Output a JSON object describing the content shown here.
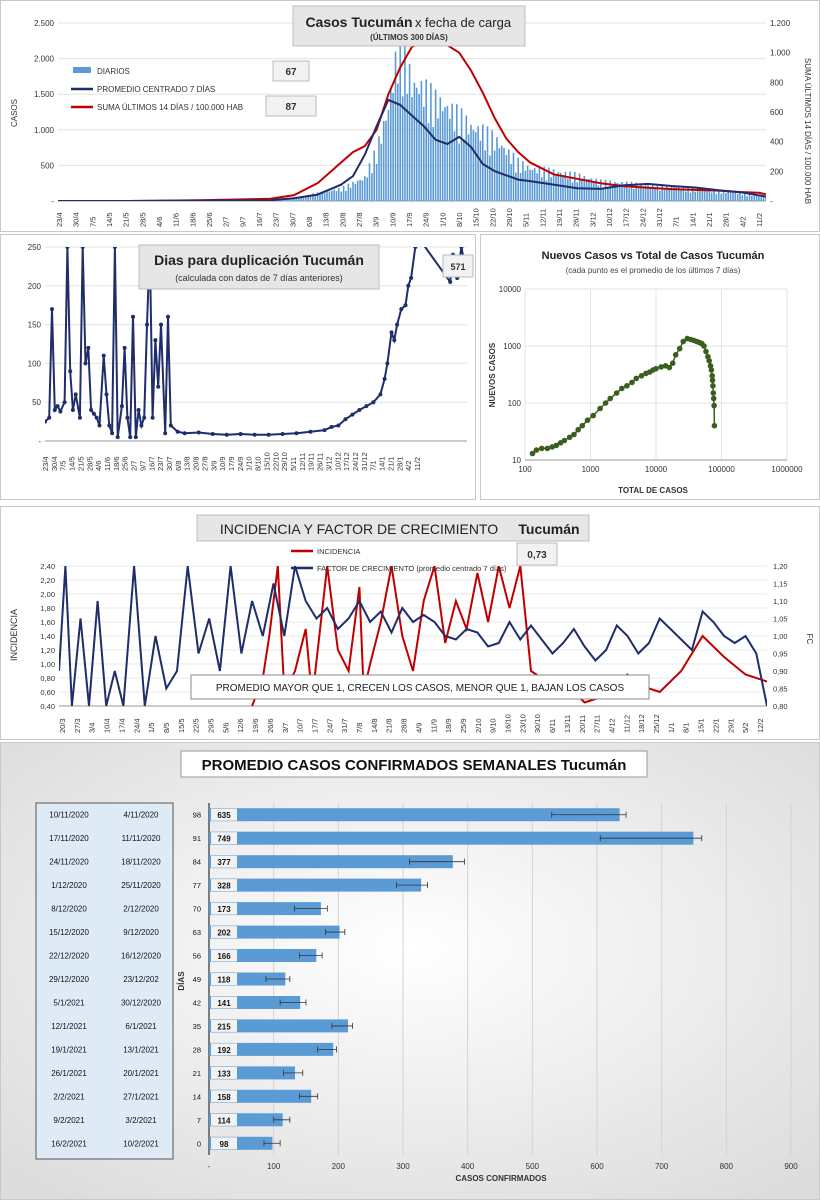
{
  "panel1": {
    "title_a": "Casos Tucumán",
    "title_b": "x fecha de carga",
    "subtitle": "(ÚLTIMOS 300 DÍAS)",
    "ylabel_left": "CASOS",
    "ylabel_right": "SUMA ÚLTIMOS 14 DÍAS / 100.000 HAB",
    "legend": [
      "DIARIOS",
      "PROMEDIO CENTRADO 7 DÍAS",
      "SUMA ÚLTIMOS 14 DÍAS / 100.000 HAB"
    ],
    "value_box_1": "67",
    "value_box_2": "87",
    "left_ticks": [
      "-",
      "500",
      "1.000",
      "1.500",
      "2.000",
      "2.500"
    ],
    "right_ticks": [
      "-",
      "200",
      "400",
      "600",
      "800",
      "1.000",
      "1.200"
    ],
    "x_ticks": [
      "23/4",
      "30/4",
      "7/5",
      "14/5",
      "21/5",
      "28/5",
      "4/6",
      "11/6",
      "18/6",
      "25/6",
      "2/7",
      "9/7",
      "16/7",
      "23/7",
      "30/7",
      "6/8",
      "13/8",
      "20/8",
      "27/8",
      "3/9",
      "10/9",
      "17/9",
      "24/9",
      "1/10",
      "8/10",
      "15/10",
      "22/10",
      "29/10",
      "5/11",
      "12/11",
      "19/11",
      "26/11",
      "3/12",
      "10/12",
      "17/12",
      "24/12",
      "31/12",
      "7/1",
      "14/1",
      "21/1",
      "28/1",
      "4/2",
      "11/2"
    ]
  },
  "panel2": {
    "title": "Dias para duplicación Tucumán",
    "subtitle": "(calculada con datos de 7 días anteriores)",
    "value_box": "571",
    "y_ticks": [
      "-",
      "50",
      "100",
      "150",
      "200",
      "250"
    ],
    "x_ticks": [
      "23/4",
      "30/4",
      "7/5",
      "14/5",
      "21/5",
      "28/5",
      "4/6",
      "11/6",
      "18/6",
      "25/6",
      "2/7",
      "9/7",
      "16/7",
      "23/7",
      "30/7",
      "6/8",
      "13/8",
      "20/8",
      "27/8",
      "3/9",
      "10/9",
      "17/9",
      "24/9",
      "1/10",
      "8/10",
      "15/10",
      "22/10",
      "29/10",
      "5/11",
      "12/11",
      "19/11",
      "26/11",
      "3/12",
      "10/12",
      "17/12",
      "24/12",
      "31/12",
      "7/1",
      "14/1",
      "21/1",
      "28/1",
      "4/2",
      "11/2"
    ]
  },
  "panel3": {
    "title": "Nuevos Casos vs Total de Casos Tucumán",
    "subtitle": "(cada punto es el promedio de los últimos 7 días)",
    "xlabel": "TOTAL DE CASOS",
    "ylabel": "NUEVOS CASOS",
    "x_ticks": [
      "100",
      "1000",
      "10000",
      "100000",
      "1000000"
    ],
    "y_ticks": [
      "10",
      "100",
      "1000",
      "10000"
    ]
  },
  "panel4": {
    "title_a": "INCIDENCIA Y FACTOR DE CRECIMIENTO",
    "title_b": "Tucumán",
    "legend": [
      "INCIDENCIA",
      "FACTOR DE CRECIMIENTO (promedio centrado 7 días)"
    ],
    "value_box": "0,73",
    "ylabel_left": "INCIDENCIA",
    "ylabel_right": "FC",
    "note": "PROMEDIO MAYOR QUE 1, CRECEN LOS CASOS, MENOR QUE 1, BAJAN LOS CASOS",
    "left_ticks": [
      "0,40",
      "0,60",
      "0,80",
      "1,00",
      "1,20",
      "1,40",
      "1,60",
      "1,80",
      "2,00",
      "2,20",
      "2,40"
    ],
    "right_ticks": [
      "0,80",
      "0,85",
      "0,90",
      "0,95",
      "1,00",
      "1,05",
      "1,10",
      "1,15",
      "1,20"
    ],
    "x_ticks": [
      "20/3",
      "27/3",
      "3/4",
      "10/4",
      "17/4",
      "24/4",
      "1/5",
      "8/5",
      "15/5",
      "22/5",
      "29/5",
      "5/6",
      "12/6",
      "19/6",
      "26/6",
      "3/7",
      "10/7",
      "17/7",
      "24/7",
      "31/7",
      "7/8",
      "14/8",
      "21/8",
      "28/8",
      "4/9",
      "11/9",
      "18/9",
      "25/9",
      "2/10",
      "9/10",
      "16/10",
      "23/10",
      "30/10",
      "6/11",
      "13/11",
      "20/11",
      "27/11",
      "4/12",
      "11/12",
      "18/12",
      "25/12",
      "1/1",
      "8/1",
      "15/1",
      "22/1",
      "29/1",
      "5/2",
      "12/2"
    ]
  },
  "panel5": {
    "title": "PROMEDIO CASOS CONFIRMADOS SEMANALES Tucumán",
    "xlabel": "CASOS CONFIRMADOS",
    "ylabel": "DÍAS",
    "x_ticks": [
      "-",
      "100",
      "200",
      "300",
      "400",
      "500",
      "600",
      "700",
      "800",
      "900"
    ]
  },
  "chart_data": [
    {
      "type": "bar",
      "id": "casos-diarios",
      "title": "Casos Tucumán x fecha de carga",
      "ylabel": "CASOS",
      "ylim": [
        0,
        2500
      ],
      "y2lim": [
        0,
        1200
      ],
      "series": [
        {
          "name": "DIARIOS",
          "axis": "left",
          "style": "bar",
          "x": [
            0,
            30,
            60,
            100,
            120,
            130,
            135,
            140,
            145,
            150,
            155,
            160,
            165,
            170,
            175,
            180,
            185,
            190,
            195,
            200,
            210,
            220,
            230,
            240,
            250,
            260,
            270,
            280,
            290,
            300
          ],
          "values": [
            2,
            5,
            10,
            40,
            160,
            300,
            650,
            1200,
            2150,
            1500,
            1450,
            1300,
            1200,
            1100,
            950,
            900,
            800,
            650,
            500,
            420,
            380,
            330,
            250,
            230,
            200,
            190,
            150,
            130,
            100,
            60
          ]
        },
        {
          "name": "PROMEDIO CENTRADO 7 DÍAS",
          "axis": "left",
          "style": "line",
          "x": [
            0,
            30,
            60,
            90,
            100,
            110,
            120,
            125,
            130,
            135,
            140,
            145,
            150,
            155,
            160,
            165,
            170,
            175,
            180,
            185,
            190,
            195,
            200,
            210,
            220,
            230,
            240,
            250,
            260,
            270,
            280,
            290,
            297,
            300
          ],
          "values": [
            0,
            0,
            5,
            10,
            40,
            90,
            230,
            350,
            650,
            1050,
            1420,
            1350,
            1200,
            1050,
            860,
            800,
            900,
            760,
            520,
            420,
            360,
            300,
            280,
            230,
            180,
            170,
            220,
            240,
            210,
            190,
            150,
            120,
            80,
            60
          ]
        },
        {
          "name": "SUMA ÚLTIMOS 14 DÍAS / 100.000 HAB",
          "axis": "right",
          "style": "line",
          "x": [
            0,
            30,
            60,
            90,
            100,
            110,
            120,
            125,
            130,
            135,
            140,
            145,
            150,
            155,
            160,
            165,
            170,
            175,
            180,
            185,
            190,
            195,
            200,
            210,
            220,
            230,
            240,
            250,
            260,
            270,
            280,
            290,
            297,
            300
          ],
          "values": [
            0,
            0,
            5,
            15,
            40,
            120,
            260,
            330,
            370,
            480,
            720,
            900,
            1040,
            1070,
            1060,
            1050,
            1000,
            880,
            730,
            560,
            420,
            330,
            260,
            180,
            150,
            120,
            100,
            90,
            80,
            75,
            70,
            60,
            55,
            45
          ]
        }
      ]
    },
    {
      "type": "line",
      "id": "dias-duplicacion",
      "title": "Dias para duplicación Tucumán",
      "ylim": [
        0,
        250
      ],
      "x": [
        0,
        3,
        5,
        7,
        9,
        11,
        14,
        16,
        18,
        20,
        22,
        25,
        27,
        29,
        31,
        33,
        35,
        37,
        39,
        42,
        44,
        46,
        48,
        50,
        52,
        55,
        57,
        59,
        61,
        63,
        65,
        67,
        69,
        71,
        73,
        75,
        77,
        79,
        81,
        83,
        86,
        88,
        90,
        95,
        100,
        110,
        120,
        130,
        140,
        150,
        160,
        170,
        180,
        190,
        200,
        205,
        210,
        215,
        220,
        225,
        230,
        235,
        240,
        243,
        245,
        248,
        250,
        252,
        255,
        258,
        260,
        262,
        265,
        268,
        270,
        290,
        292,
        295,
        298,
        300,
        302
      ],
      "values": [
        25,
        30,
        170,
        40,
        45,
        38,
        50,
        250,
        90,
        40,
        60,
        30,
        250,
        100,
        120,
        40,
        35,
        30,
        20,
        110,
        60,
        20,
        10,
        250,
        5,
        45,
        120,
        30,
        5,
        160,
        5,
        40,
        20,
        30,
        150,
        250,
        30,
        130,
        70,
        150,
        10,
        160,
        20,
        12,
        10,
        11,
        9,
        8,
        9,
        8,
        8,
        9,
        10,
        12,
        14,
        18,
        20,
        28,
        34,
        40,
        45,
        50,
        60,
        80,
        100,
        140,
        130,
        150,
        170,
        175,
        200,
        210,
        250,
        260,
        255,
        205,
        240,
        210,
        250,
        230,
        215
      ]
    },
    {
      "type": "scatter",
      "id": "nuevos-vs-total",
      "title": "Nuevos Casos vs Total de Casos Tucumán",
      "xlabel": "TOTAL DE CASOS",
      "ylabel": "NUEVOS CASOS",
      "xscale": "log",
      "yscale": "log",
      "xlim": [
        100,
        1000000
      ],
      "ylim": [
        10,
        10000
      ],
      "x": [
        130,
        150,
        180,
        220,
        260,
        300,
        350,
        400,
        480,
        560,
        650,
        750,
        900,
        1100,
        1400,
        1700,
        2000,
        2500,
        3000,
        3600,
        4300,
        5000,
        6000,
        7000,
        8000,
        9000,
        10000,
        12000,
        14000,
        16000,
        18000,
        20000,
        23000,
        26000,
        30000,
        34000,
        38000,
        42000,
        46000,
        50000,
        54000,
        58000,
        62000,
        65000,
        68000,
        70000,
        72000,
        73000,
        74000,
        75000,
        76000,
        77000,
        78000
      ],
      "y": [
        13,
        15,
        16,
        16,
        17,
        18,
        20,
        22,
        25,
        28,
        34,
        40,
        50,
        60,
        80,
        100,
        120,
        150,
        180,
        200,
        230,
        270,
        300,
        330,
        350,
        380,
        400,
        430,
        450,
        420,
        500,
        700,
        900,
        1200,
        1350,
        1300,
        1250,
        1200,
        1150,
        1100,
        1000,
        800,
        650,
        550,
        450,
        380,
        300,
        250,
        200,
        150,
        120,
        90,
        40
      ]
    },
    {
      "type": "line",
      "id": "incidencia-factor",
      "title": "INCIDENCIA Y FACTOR DE CRECIMIENTO Tucumán",
      "ylim": [
        0.4,
        2.4
      ],
      "y2lim": [
        0.8,
        1.2
      ],
      "series": [
        {
          "name": "INCIDENCIA",
          "axis": "left",
          "x": [
            90,
            95,
            98,
            102,
            105,
            110,
            115,
            118,
            125,
            130,
            135,
            140,
            142,
            145,
            150,
            155,
            160,
            165,
            170,
            175,
            180,
            185,
            190,
            195,
            200,
            205,
            210,
            215,
            220,
            225,
            230,
            235,
            240,
            245,
            250,
            255,
            260,
            265,
            270,
            280,
            290,
            300,
            310,
            320,
            330
          ],
          "values": [
            0.4,
            0.8,
            1.4,
            2.4,
            0.6,
            0.9,
            1.5,
            0.5,
            2.4,
            1.2,
            0.9,
            2.1,
            0.6,
            1.0,
            1.6,
            2.4,
            1.4,
            0.9,
            1.9,
            2.4,
            1.3,
            1.9,
            1.5,
            2.3,
            1.6,
            2.4,
            1.8,
            2.4,
            0.9,
            0.8,
            0.6,
            0.55,
            0.6,
            0.45,
            0.5,
            0.55,
            0.7,
            0.85,
            0.7,
            0.6,
            0.9,
            1.4,
            1.1,
            0.85,
            0.75
          ]
        },
        {
          "name": "FACTOR DE CRECIMIENTO (promedio centrado 7 días)",
          "axis": "right",
          "x": [
            0,
            3,
            6,
            10,
            14,
            18,
            22,
            26,
            30,
            35,
            40,
            45,
            50,
            55,
            60,
            65,
            70,
            75,
            80,
            85,
            90,
            95,
            100,
            105,
            110,
            115,
            120,
            125,
            130,
            135,
            140,
            145,
            150,
            155,
            160,
            165,
            170,
            175,
            180,
            185,
            190,
            195,
            200,
            205,
            210,
            215,
            220,
            225,
            230,
            235,
            240,
            245,
            250,
            255,
            260,
            265,
            270,
            275,
            280,
            285,
            290,
            295,
            300,
            305,
            310,
            315,
            320,
            325,
            330
          ],
          "values": [
            0.9,
            1.2,
            0.8,
            1.05,
            0.8,
            1.1,
            0.8,
            0.9,
            0.8,
            1.2,
            0.8,
            1.0,
            0.85,
            0.9,
            1.2,
            0.95,
            1.05,
            0.9,
            1.2,
            0.95,
            1.1,
            1.0,
            1.15,
            1.0,
            1.2,
            1.1,
            1.05,
            1.08,
            1.02,
            1.05,
            1.1,
            1.04,
            1.07,
            1.01,
            1.08,
            1.04,
            1.06,
            1.04,
            1.0,
            0.99,
            1.02,
            1.01,
            0.97,
            0.98,
            1.04,
            0.99,
            1.03,
            0.99,
            0.95,
            0.98,
            1.02,
            0.97,
            0.93,
            0.96,
            1.03,
            1.0,
            0.95,
            0.98,
            1.05,
            1.02,
            0.99,
            0.96,
            1.07,
            1.04,
            1.0,
            0.98,
            1.0,
            0.95,
            0.8
          ]
        }
      ]
    },
    {
      "type": "bar",
      "id": "promedio-semanal",
      "title": "PROMEDIO CASOS CONFIRMADOS SEMANALES Tucumán",
      "orientation": "horizontal",
      "xlabel": "CASOS CONFIRMADOS",
      "ylabel": "DÍAS",
      "xlim": [
        0,
        900
      ],
      "rows": [
        {
          "end": "10/11/2020",
          "start": "4/11/2020",
          "days": "98",
          "value": 635,
          "err_low": 530,
          "err_high": 645
        },
        {
          "end": "17/11/2020",
          "start": "11/11/2020",
          "days": "91",
          "value": 749,
          "err_low": 605,
          "err_high": 762
        },
        {
          "end": "24/11/2020",
          "start": "18/11/2020",
          "days": "84",
          "value": 377,
          "err_low": 310,
          "err_high": 395
        },
        {
          "end": "1/12/2020",
          "start": "25/11/2020",
          "days": "77",
          "value": 328,
          "err_low": 290,
          "err_high": 338
        },
        {
          "end": "8/12/2020",
          "start": "2/12/2020",
          "days": "70",
          "value": 173,
          "err_low": 132,
          "err_high": 183
        },
        {
          "end": "15/12/2020",
          "start": "9/12/2020",
          "days": "63",
          "value": 202,
          "err_low": 180,
          "err_high": 210
        },
        {
          "end": "22/12/2020",
          "start": "16/12/2020",
          "days": "56",
          "value": 166,
          "err_low": 140,
          "err_high": 175
        },
        {
          "end": "29/12/2020",
          "start": "23/12/202",
          "days": "49",
          "value": 118,
          "err_low": 88,
          "err_high": 125
        },
        {
          "end": "5/1/2021",
          "start": "30/12/2020",
          "days": "42",
          "value": 141,
          "err_low": 110,
          "err_high": 150
        },
        {
          "end": "12/1/2021",
          "start": "6/1/2021",
          "days": "35",
          "value": 215,
          "err_low": 190,
          "err_high": 222
        },
        {
          "end": "19/1/2021",
          "start": "13/1/2021",
          "days": "28",
          "value": 192,
          "err_low": 168,
          "err_high": 197
        },
        {
          "end": "26/1/2021",
          "start": "20/1/2021",
          "days": "21",
          "value": 133,
          "err_low": 115,
          "err_high": 145
        },
        {
          "end": "2/2/2021",
          "start": "27/1/2021",
          "days": "14",
          "value": 158,
          "err_low": 140,
          "err_high": 168
        },
        {
          "end": "9/2/2021",
          "start": "3/2/2021",
          "days": "7",
          "value": 114,
          "err_low": 100,
          "err_high": 125
        },
        {
          "end": "16/2/2021",
          "start": "10/2/2021",
          "days": "0",
          "value": 98,
          "err_low": 85,
          "err_high": 110
        }
      ]
    }
  ]
}
